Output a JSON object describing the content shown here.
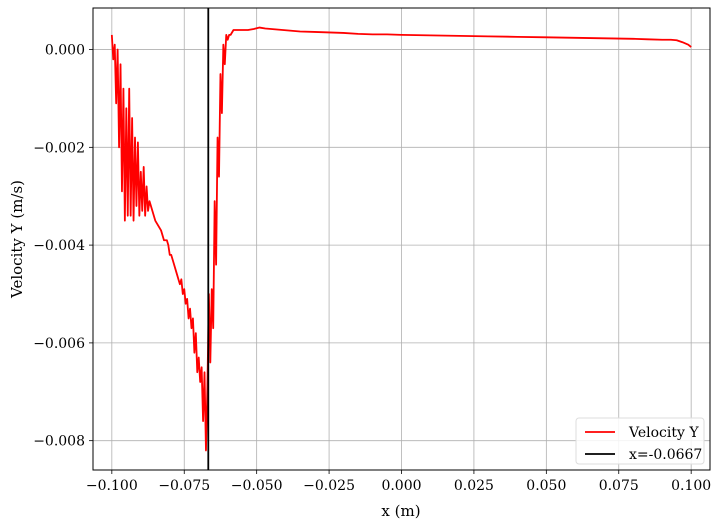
{
  "chart_data": {
    "type": "line",
    "title": "",
    "xlabel": "x (m)",
    "ylabel": "Velocity Y (m/s)",
    "xlim": [
      -0.1065,
      0.1065
    ],
    "ylim": [
      -0.0086,
      0.00085
    ],
    "grid": true,
    "legend_position": "bottom-right",
    "x_ticks": [
      -0.1,
      -0.075,
      -0.05,
      -0.025,
      0.0,
      0.025,
      0.05,
      0.075,
      0.1
    ],
    "x_tick_labels": [
      "−0.100",
      "−0.075",
      "−0.050",
      "−0.025",
      "0.000",
      "0.025",
      "0.050",
      "0.075",
      "0.100"
    ],
    "y_ticks": [
      0.0,
      -0.002,
      -0.004,
      -0.006,
      -0.008
    ],
    "y_tick_labels": [
      "0.000",
      "−0.002",
      "−0.004",
      "−0.006",
      "−0.008"
    ],
    "series": [
      {
        "name": "Velocity Y",
        "color": "#ff0000",
        "x": [
          -0.1,
          -0.0995,
          -0.099,
          -0.0985,
          -0.098,
          -0.0975,
          -0.097,
          -0.0965,
          -0.096,
          -0.0955,
          -0.095,
          -0.0945,
          -0.094,
          -0.0935,
          -0.093,
          -0.0925,
          -0.092,
          -0.0915,
          -0.091,
          -0.0905,
          -0.09,
          -0.0895,
          -0.089,
          -0.0885,
          -0.088,
          -0.0875,
          -0.087,
          -0.086,
          -0.085,
          -0.084,
          -0.083,
          -0.082,
          -0.081,
          -0.0805,
          -0.08,
          -0.0795,
          -0.079,
          -0.0785,
          -0.078,
          -0.0775,
          -0.077,
          -0.0765,
          -0.076,
          -0.0755,
          -0.075,
          -0.0745,
          -0.074,
          -0.0735,
          -0.073,
          -0.0725,
          -0.072,
          -0.0715,
          -0.071,
          -0.0705,
          -0.07,
          -0.0695,
          -0.069,
          -0.0685,
          -0.068,
          -0.0675,
          -0.067,
          -0.0665,
          -0.066,
          -0.0655,
          -0.065,
          -0.0645,
          -0.064,
          -0.0635,
          -0.063,
          -0.0625,
          -0.062,
          -0.0615,
          -0.061,
          -0.0605,
          -0.06,
          -0.0595,
          -0.059,
          -0.058,
          -0.057,
          -0.056,
          -0.055,
          -0.053,
          -0.051,
          -0.049,
          -0.047,
          -0.045,
          -0.043,
          -0.041,
          -0.039,
          -0.035,
          -0.03,
          -0.025,
          -0.02,
          -0.015,
          -0.01,
          -0.005,
          0.0,
          0.01,
          0.02,
          0.03,
          0.04,
          0.05,
          0.06,
          0.07,
          0.08,
          0.085,
          0.09,
          0.093,
          0.095,
          0.097,
          0.099,
          0.1
        ],
        "y": [
          0.0003,
          -0.0002,
          0.0001,
          -0.0011,
          0.0,
          -0.002,
          -0.0003,
          -0.0029,
          -0.0008,
          -0.0035,
          -0.0012,
          -0.0034,
          -0.0008,
          -0.0034,
          -0.0014,
          -0.0035,
          -0.0018,
          -0.0032,
          -0.0019,
          -0.0034,
          -0.0025,
          -0.0033,
          -0.0024,
          -0.0034,
          -0.0028,
          -0.0033,
          -0.0031,
          -0.0033,
          -0.0035,
          -0.0036,
          -0.0037,
          -0.0039,
          -0.0039,
          -0.004,
          -0.0042,
          -0.0042,
          -0.0043,
          -0.0044,
          -0.0045,
          -0.0046,
          -0.0047,
          -0.0048,
          -0.0047,
          -0.005,
          -0.0049,
          -0.0052,
          -0.0051,
          -0.0055,
          -0.0053,
          -0.0057,
          -0.0055,
          -0.0062,
          -0.0058,
          -0.0066,
          -0.0063,
          -0.0068,
          -0.0065,
          -0.0076,
          -0.0066,
          -0.0082,
          -0.0069,
          -0.005,
          -0.0064,
          -0.0049,
          -0.0057,
          -0.0031,
          -0.0044,
          -0.0018,
          -0.0026,
          -0.0005,
          -0.0013,
          0.0001,
          -0.0003,
          0.0003,
          0.0002,
          0.0003,
          0.0003,
          0.0004,
          0.0004,
          0.0004,
          0.0004,
          0.0004,
          0.00042,
          0.00045,
          0.00043,
          0.00042,
          0.00041,
          0.0004,
          0.00039,
          0.00037,
          0.00036,
          0.00035,
          0.00034,
          0.00032,
          0.00031,
          0.00031,
          0.0003,
          0.00029,
          0.00028,
          0.00027,
          0.00026,
          0.00025,
          0.00024,
          0.00023,
          0.00022,
          0.00021,
          0.0002,
          0.0002,
          0.00019,
          0.00015,
          0.0001,
          5e-05
        ]
      },
      {
        "name": "x=-0.0667",
        "color": "#000000",
        "type": "vline",
        "x": -0.0667
      }
    ]
  }
}
